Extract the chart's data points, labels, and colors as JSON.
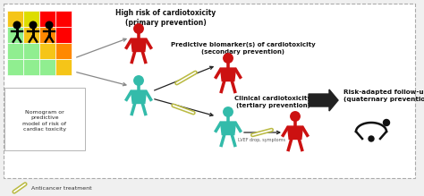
{
  "bg_color": "#f0f0f0",
  "border_color": "#aaaaaa",
  "grid_colors": [
    [
      "#f5c518",
      "#dddd00",
      "#ff0000",
      "#ff0000"
    ],
    [
      "#90ee90",
      "#f5c518",
      "#ff8800",
      "#ff0000"
    ],
    [
      "#90ee90",
      "#90ee90",
      "#f5c518",
      "#ff8800"
    ],
    [
      "#90ee90",
      "#90ee90",
      "#90ee90",
      "#f5c518"
    ]
  ],
  "label_nomogram": "Nomogram or\npredictive\nmodel of risk of\ncardiac toxicity",
  "label_high_risk": "High risk of cardiotoxicity\n(primary prevention)",
  "label_biomarker": "Predictive biomarker(s) of cardiotoxicity\n(secondary prevention)",
  "label_clinical": "Clinical cardiotoxicity\n(tertiary prevention)",
  "label_followup": "Risk-adapted follow-up\n(quaternary prevention)",
  "label_lvef": "LVEF drop, symptoms",
  "label_anticancer": "Anticancer treatment",
  "person_red": "#cc1111",
  "person_teal": "#33bbaa",
  "arrow_gray": "#888888",
  "arrow_dark": "#222222",
  "syringe_color": "#bbbb44",
  "stethoscope_color": "#111111",
  "white": "#ffffff"
}
